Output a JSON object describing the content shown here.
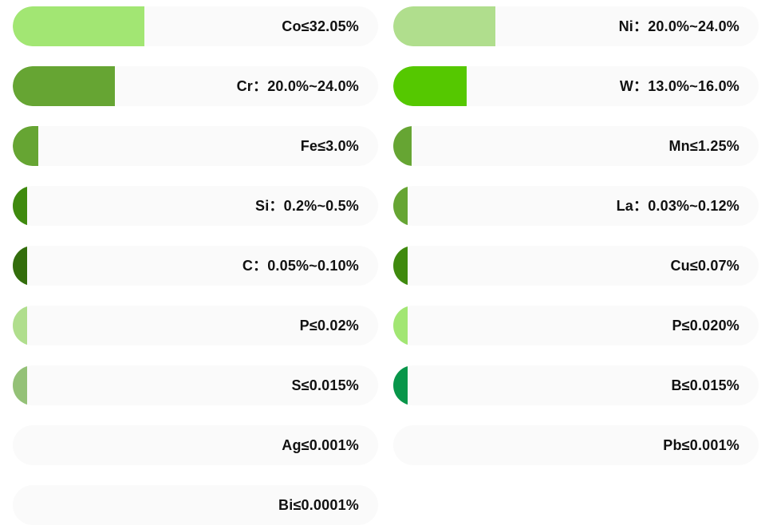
{
  "chart_data": {
    "type": "bar",
    "orientation": "horizontal",
    "columns": 2,
    "xlim": [
      0,
      100
    ],
    "grid": false,
    "legend": "none",
    "bars": [
      {
        "label": "Co≤32.05%",
        "value": 36,
        "color": "#a2e673"
      },
      {
        "label": "Ni：20.0%~24.0%",
        "value": 28,
        "color": "#b0de8d"
      },
      {
        "label": "Cr：20.0%~24.0%",
        "value": 28,
        "color": "#66a533"
      },
      {
        "label": "W：13.0%~16.0%",
        "value": 20,
        "color": "#55c800"
      },
      {
        "label": "Fe≤3.0%",
        "value": 7,
        "color": "#66a533"
      },
      {
        "label": "Mn≤1.25%",
        "value": 5,
        "color": "#66a533"
      },
      {
        "label": "Si：0.2%~0.5%",
        "value": 4,
        "color": "#3f8a0e"
      },
      {
        "label": "La：0.03%~0.12%",
        "value": 4,
        "color": "#66a533"
      },
      {
        "label": "C：0.05%~0.10%",
        "value": 4,
        "color": "#336d0c"
      },
      {
        "label": "Cu≤0.07%",
        "value": 4,
        "color": "#3f8a0e"
      },
      {
        "label": "P≤0.02%",
        "value": 4,
        "color": "#b0de8d"
      },
      {
        "label": "P≤0.020%",
        "value": 4,
        "color": "#a2e673"
      },
      {
        "label": "S≤0.015%",
        "value": 4,
        "color": "#94c177"
      },
      {
        "label": "B≤0.015%",
        "value": 4,
        "color": "#08964a"
      },
      {
        "label": "Ag≤0.001%",
        "value": 0,
        "color": "#a2e673"
      },
      {
        "label": "Pb≤0.001%",
        "value": 0,
        "color": "#a2e673"
      },
      {
        "label": "Bi≤0.0001%",
        "value": 0,
        "color": "#a2e673"
      }
    ],
    "track_color": "#fafafa",
    "label_color": "#111111"
  }
}
